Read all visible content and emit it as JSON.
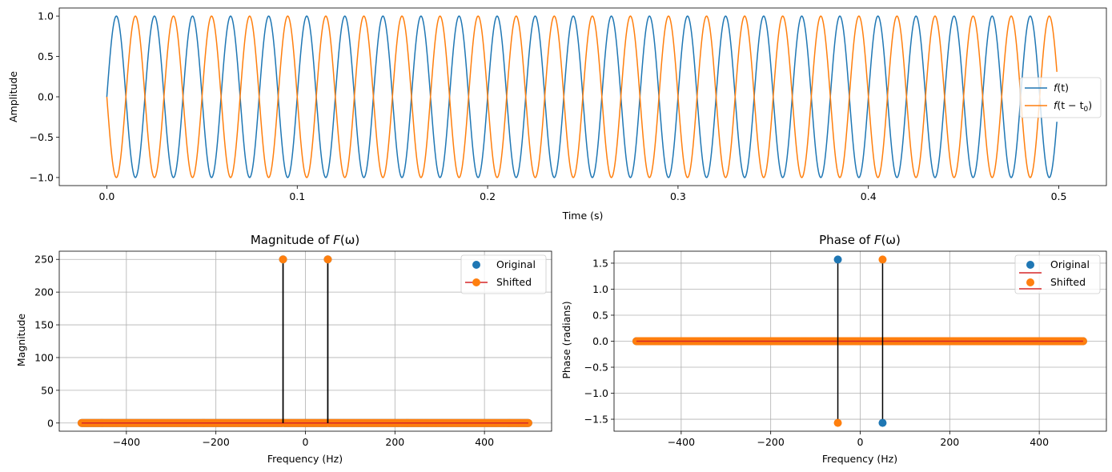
{
  "colors": {
    "original": "#1f77b4",
    "shifted": "#ff7f0e",
    "baseline": "#d62728",
    "stem": "#000000",
    "grid": "#b0b0b0"
  },
  "chart_data": [
    {
      "id": "time",
      "type": "line",
      "title": "",
      "xlabel": "Time (s)",
      "ylabel": "Amplitude",
      "xlim": [
        -0.025,
        0.525
      ],
      "ylim": [
        -1.1,
        1.1
      ],
      "xticks": [
        0.0,
        0.1,
        0.2,
        0.3,
        0.4,
        0.5
      ],
      "xtick_labels": [
        "0.0",
        "0.1",
        "0.2",
        "0.3",
        "0.4",
        "0.5"
      ],
      "yticks": [
        -1.0,
        -0.5,
        0.0,
        0.5,
        1.0
      ],
      "ytick_labels": [
        "−1.0",
        "−0.5",
        "0.0",
        "0.5",
        "1.0"
      ],
      "grid": false,
      "legend_position": "right",
      "series": [
        {
          "name": "f(t)",
          "label_main": "f",
          "label_tail": "(t)",
          "function": "sin(2*pi*50*t)",
          "frequency_hz": 50,
          "phase_shift_s": 0.0,
          "t_start": 0.0,
          "t_end": 0.499,
          "color": "#1f77b4"
        },
        {
          "name": "f(t − t0)",
          "label_main": "f",
          "label_tail": "(t − t",
          "label_sub": "0",
          "label_close": ")",
          "function": "sin(2*pi*50*(t - t0))",
          "frequency_hz": 50,
          "phase_shift_s": 0.01,
          "t_start": 0.0,
          "t_end": 0.499,
          "color": "#ff7f0e"
        }
      ]
    },
    {
      "id": "magnitude",
      "type": "stem",
      "title_prefix": "Magnitude of ",
      "title_main": "F",
      "title_tail": "(ω)",
      "xlabel": "Frequency (Hz)",
      "ylabel": "Magnitude",
      "xlim": [
        -550,
        550
      ],
      "ylim": [
        -12.5,
        262.5
      ],
      "xticks": [
        -400,
        -200,
        0,
        200,
        400
      ],
      "xtick_labels": [
        "−400",
        "−200",
        "0",
        "200",
        "400"
      ],
      "yticks": [
        0,
        50,
        100,
        150,
        200,
        250
      ],
      "ytick_labels": [
        "0",
        "50",
        "100",
        "150",
        "200",
        "250"
      ],
      "grid": true,
      "legend_position": "top-right",
      "freq_range": [
        -500,
        498
      ],
      "freq_step": 2,
      "series": [
        {
          "name": "Original",
          "points": [
            {
              "x": -50,
              "y": 250
            },
            {
              "x": 50,
              "y": 250
            }
          ],
          "baseline_value": 0,
          "color": "#1f77b4"
        },
        {
          "name": "Shifted",
          "points": [
            {
              "x": -50,
              "y": 250
            },
            {
              "x": 50,
              "y": 250
            }
          ],
          "baseline_value": 0,
          "color": "#ff7f0e"
        }
      ]
    },
    {
      "id": "phase",
      "type": "stem",
      "title_prefix": "Phase of ",
      "title_main": "F",
      "title_tail": "(ω)",
      "xlabel": "Frequency (Hz)",
      "ylabel": "Phase (radians)",
      "xlim": [
        -550,
        550
      ],
      "ylim": [
        -1.73,
        1.73
      ],
      "xticks": [
        -400,
        -200,
        0,
        200,
        400
      ],
      "xtick_labels": [
        "−400",
        "−200",
        "0",
        "200",
        "400"
      ],
      "yticks": [
        -1.5,
        -1.0,
        -0.5,
        0.0,
        0.5,
        1.0,
        1.5
      ],
      "ytick_labels": [
        "−1.5",
        "−1.0",
        "−0.5",
        "0.0",
        "0.5",
        "1.0",
        "1.5"
      ],
      "grid": true,
      "legend_position": "top-right",
      "freq_range": [
        -500,
        498
      ],
      "freq_step": 2,
      "series": [
        {
          "name": "Original",
          "points": [
            {
              "x": -50,
              "y": 1.5708
            },
            {
              "x": 50,
              "y": -1.5708
            }
          ],
          "baseline_value": 0,
          "color": "#1f77b4"
        },
        {
          "name": "Shifted",
          "points": [
            {
              "x": -50,
              "y": -1.5708
            },
            {
              "x": 50,
              "y": 1.5708
            }
          ],
          "baseline_value": 0,
          "color": "#ff7f0e"
        }
      ]
    }
  ]
}
